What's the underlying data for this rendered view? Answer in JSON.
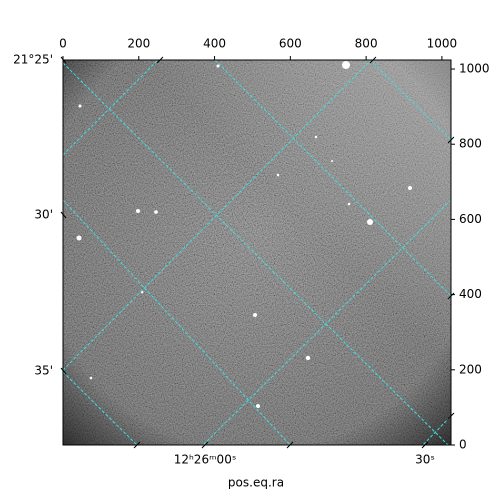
{
  "chart_data": {
    "type": "image",
    "xlim": [
      0,
      1024
    ],
    "ylim": [
      0,
      1024
    ],
    "xticks": [
      0,
      200,
      400,
      600,
      800,
      1000
    ],
    "yticks": [
      0,
      200,
      400,
      600,
      800,
      1000
    ],
    "world_yticks": [
      "21°25'",
      "30'",
      "35'"
    ],
    "world_xticks": [
      "12ʰ26ᵐ00ˢ",
      "30ˢ"
    ],
    "xlabel": "pos.eq.ra",
    "grid_color": "#40e0e0"
  }
}
